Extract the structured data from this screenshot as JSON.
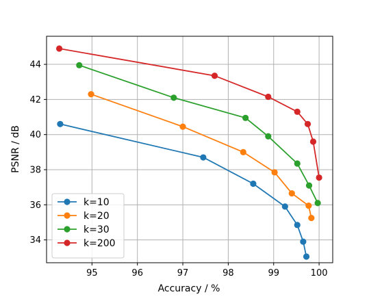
{
  "chart_data": {
    "type": "line",
    "xlabel": "Accuracy / %",
    "ylabel": "PSNR / dB",
    "xlim": [
      94.0,
      100.3
    ],
    "ylim": [
      32.7,
      45.6
    ],
    "xticks": [
      95,
      96,
      97,
      98,
      99,
      100
    ],
    "yticks": [
      34,
      36,
      38,
      40,
      42,
      44
    ],
    "grid": true,
    "legend": {
      "position": "lower-left"
    },
    "series": [
      {
        "name": "k=10",
        "color": "#1f77b4",
        "points": [
          [
            94.3,
            40.6
          ],
          [
            97.45,
            38.7
          ],
          [
            98.55,
            37.2
          ],
          [
            99.25,
            35.9
          ],
          [
            99.52,
            34.85
          ],
          [
            99.65,
            33.9
          ],
          [
            99.72,
            33.05
          ]
        ]
      },
      {
        "name": "k=20",
        "color": "#ff7f0e",
        "points": [
          [
            94.98,
            42.3
          ],
          [
            97.0,
            40.45
          ],
          [
            98.33,
            39.0
          ],
          [
            99.02,
            37.85
          ],
          [
            99.4,
            36.65
          ],
          [
            99.77,
            35.95
          ],
          [
            99.83,
            35.25
          ]
        ]
      },
      {
        "name": "k=30",
        "color": "#2ca02c",
        "points": [
          [
            94.72,
            43.95
          ],
          [
            96.8,
            42.1
          ],
          [
            98.38,
            40.95
          ],
          [
            98.88,
            39.9
          ],
          [
            99.52,
            38.35
          ],
          [
            99.78,
            37.1
          ],
          [
            99.97,
            36.1
          ]
        ]
      },
      {
        "name": "k=200",
        "color": "#d62728",
        "points": [
          [
            94.28,
            44.9
          ],
          [
            97.7,
            43.35
          ],
          [
            98.88,
            42.15
          ],
          [
            99.52,
            41.3
          ],
          [
            99.75,
            40.6
          ],
          [
            99.87,
            39.6
          ],
          [
            100.0,
            37.55
          ]
        ]
      }
    ]
  }
}
